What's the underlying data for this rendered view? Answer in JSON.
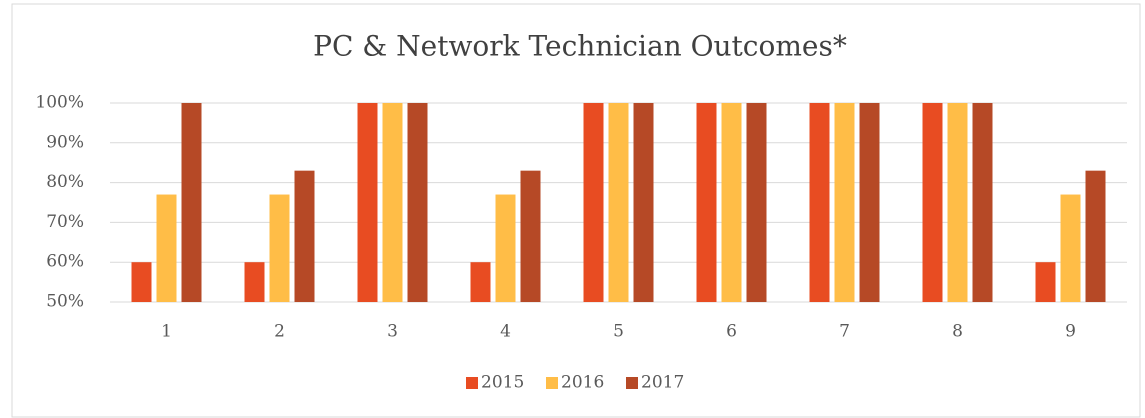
{
  "chart_data": {
    "type": "bar",
    "title": "PC & Network Technician Outcomes*",
    "categories": [
      "1",
      "2",
      "3",
      "4",
      "5",
      "6",
      "7",
      "8",
      "9"
    ],
    "series": [
      {
        "name": "2015",
        "color": "#e84c22",
        "values": [
          60,
          60,
          100,
          60,
          100,
          100,
          100,
          100,
          60
        ]
      },
      {
        "name": "2016",
        "color": "#ffbd47",
        "values": [
          77,
          77,
          100,
          77,
          100,
          100,
          100,
          100,
          77
        ]
      },
      {
        "name": "2017",
        "color": "#b64926",
        "values": [
          100,
          83,
          100,
          83,
          100,
          100,
          100,
          100,
          83
        ]
      }
    ],
    "ylim": [
      50,
      100
    ],
    "yticks": [
      {
        "value": 50,
        "label": "50%"
      },
      {
        "value": 60,
        "label": "60%"
      },
      {
        "value": 70,
        "label": "70%"
      },
      {
        "value": 80,
        "label": "80%"
      },
      {
        "value": 90,
        "label": "90%"
      },
      {
        "value": 100,
        "label": "100%"
      }
    ],
    "grid": true,
    "legend": "bottom"
  }
}
